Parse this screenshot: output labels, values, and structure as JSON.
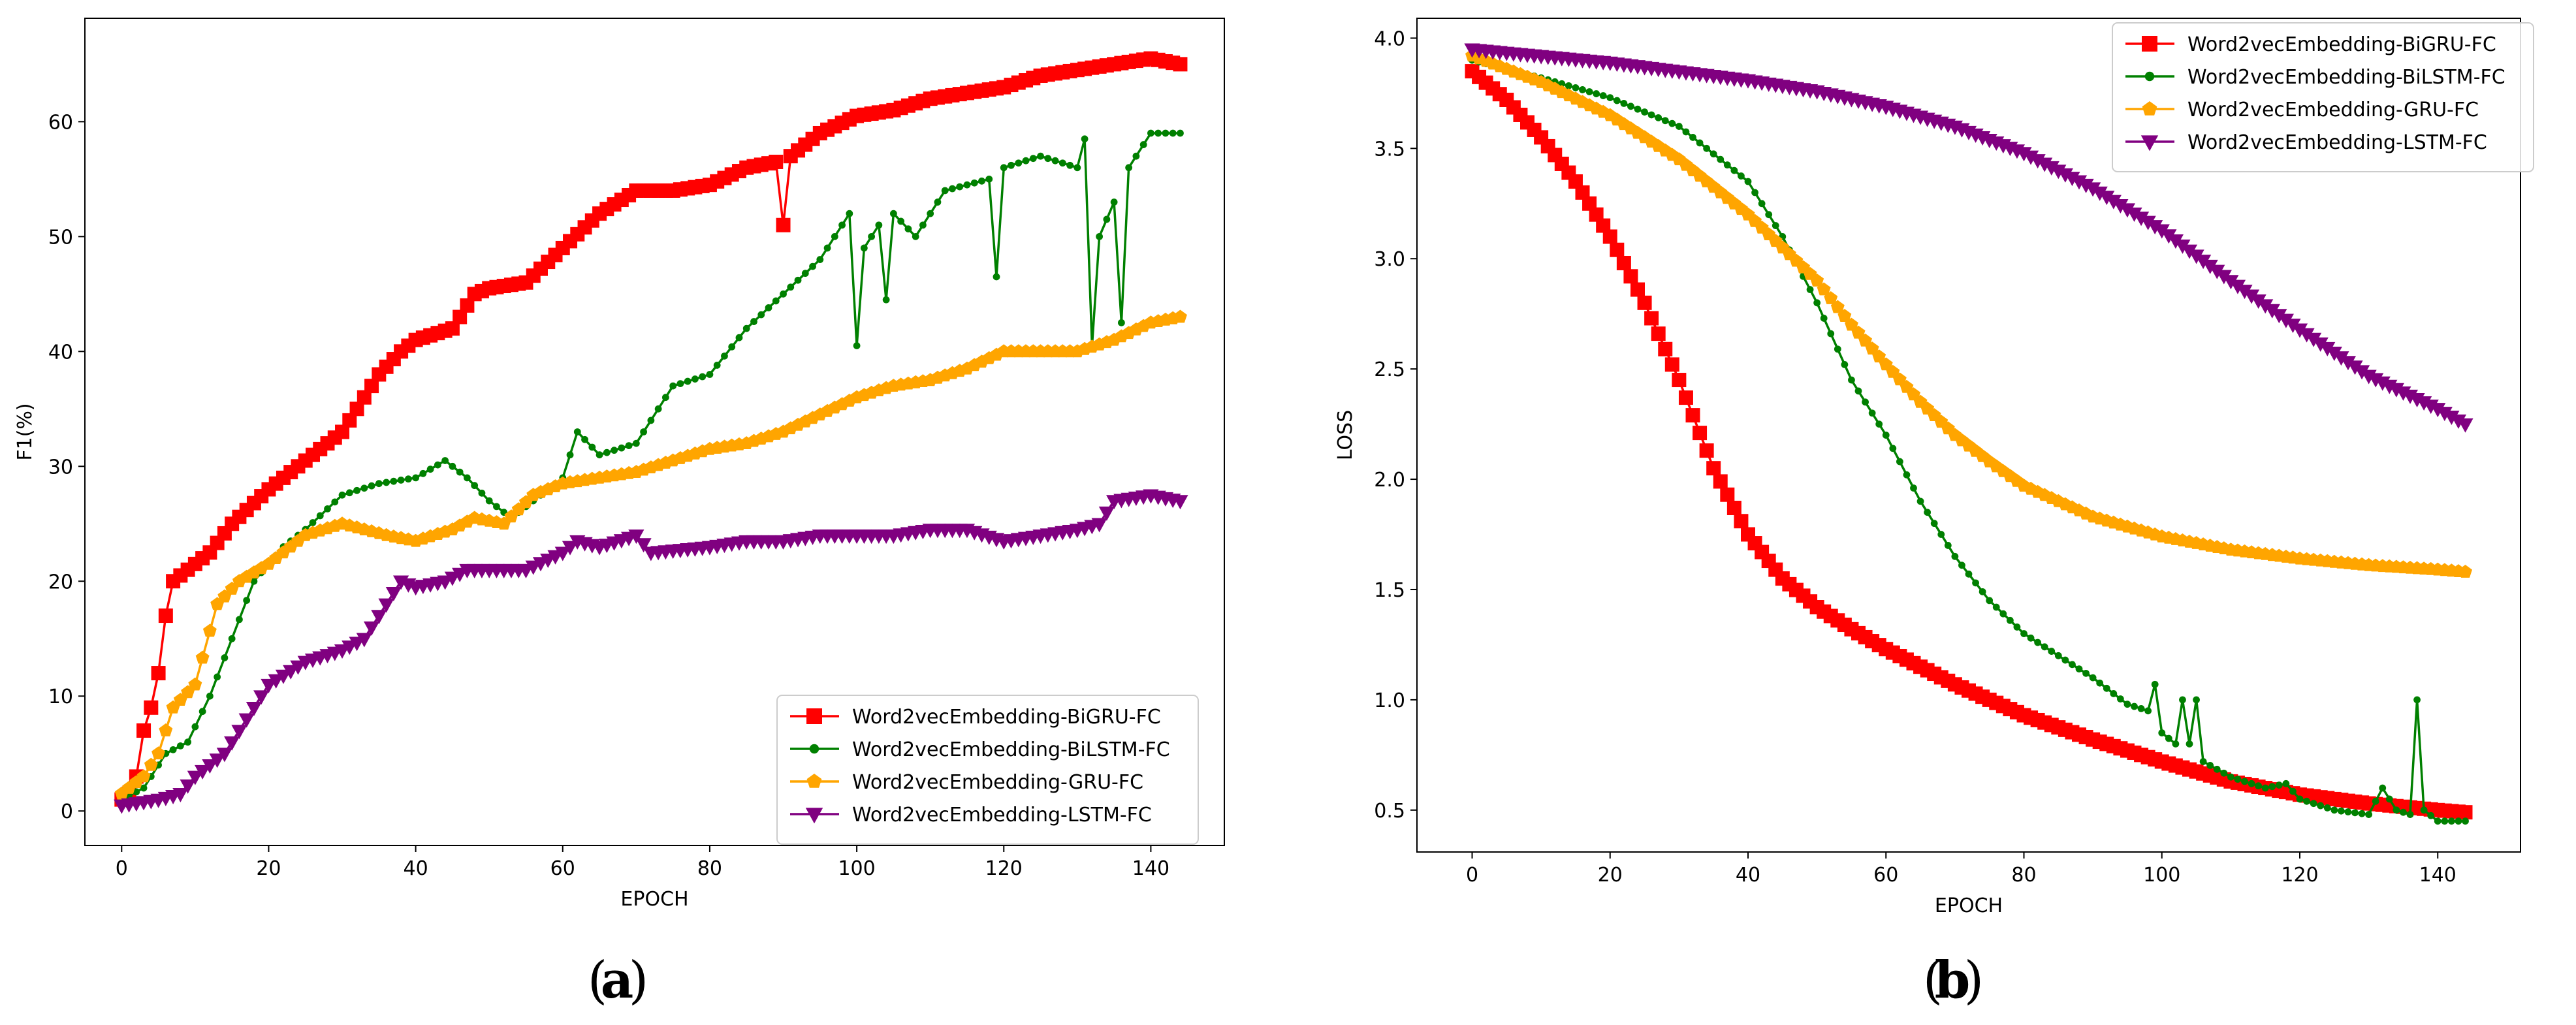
{
  "colors": {
    "BiGRU": "#ff0000",
    "BiLSTM": "#008000",
    "GRU": "#ffa500",
    "LSTM": "#800080"
  },
  "chart_data": [
    {
      "id": "a",
      "type": "line",
      "caption_open": "(",
      "caption_letter": "a",
      "caption_close": ")",
      "xlabel": "EPOCH",
      "ylabel": "F1(%)",
      "xlim": [
        -5,
        150
      ],
      "ylim": [
        -3,
        69
      ],
      "xticks": [
        0,
        20,
        40,
        60,
        80,
        100,
        120,
        140
      ],
      "yticks": [
        0,
        10,
        20,
        30,
        40,
        50,
        60
      ],
      "legend_position": "lower-right",
      "x_range": [
        0,
        144
      ],
      "series": [
        {
          "name": "Word2vecEmbedding-BiGRU-FC",
          "color_key": "BiGRU",
          "marker": "square",
          "anchors": [
            [
              0,
              1
            ],
            [
              1,
              1.5
            ],
            [
              2,
              3
            ],
            [
              3,
              7
            ],
            [
              4,
              9
            ],
            [
              5,
              12
            ],
            [
              6,
              17
            ],
            [
              7,
              20
            ],
            [
              9,
              21
            ],
            [
              12,
              22.5
            ],
            [
              15,
              25
            ],
            [
              20,
              28
            ],
            [
              25,
              30.5
            ],
            [
              30,
              33
            ],
            [
              35,
              38
            ],
            [
              38,
              40
            ],
            [
              40,
              41
            ],
            [
              45,
              42
            ],
            [
              48,
              45
            ],
            [
              50,
              45.5
            ],
            [
              55,
              46
            ],
            [
              60,
              49
            ],
            [
              65,
              52
            ],
            [
              70,
              54
            ],
            [
              75,
              54
            ],
            [
              80,
              54.5
            ],
            [
              85,
              56
            ],
            [
              89,
              56.5
            ],
            [
              90,
              51
            ],
            [
              91,
              57
            ],
            [
              95,
              59
            ],
            [
              100,
              60.5
            ],
            [
              105,
              61
            ],
            [
              110,
              62
            ],
            [
              115,
              62.5
            ],
            [
              120,
              63
            ],
            [
              125,
              64
            ],
            [
              130,
              64.5
            ],
            [
              135,
              65
            ],
            [
              140,
              65.5
            ],
            [
              144,
              65
            ]
          ]
        },
        {
          "name": "Word2vecEmbedding-BiLSTM-FC",
          "color_key": "BiLSTM",
          "marker": "point",
          "anchors": [
            [
              0,
              1
            ],
            [
              3,
              2
            ],
            [
              6,
              5
            ],
            [
              9,
              6
            ],
            [
              12,
              10
            ],
            [
              15,
              15
            ],
            [
              18,
              20
            ],
            [
              22,
              23
            ],
            [
              25,
              24.5
            ],
            [
              30,
              27.5
            ],
            [
              35,
              28.5
            ],
            [
              40,
              29
            ],
            [
              44,
              30.5
            ],
            [
              47,
              29
            ],
            [
              50,
              27
            ],
            [
              53,
              25.5
            ],
            [
              56,
              27
            ],
            [
              60,
              29
            ],
            [
              62,
              33
            ],
            [
              65,
              31
            ],
            [
              70,
              32
            ],
            [
              75,
              37
            ],
            [
              80,
              38
            ],
            [
              85,
              42
            ],
            [
              90,
              45
            ],
            [
              95,
              48
            ],
            [
              99,
              52
            ],
            [
              100,
              40.5
            ],
            [
              101,
              49
            ],
            [
              103,
              51
            ],
            [
              104,
              44.5
            ],
            [
              105,
              52
            ],
            [
              108,
              50
            ],
            [
              112,
              54
            ],
            [
              118,
              55
            ],
            [
              119,
              46.5
            ],
            [
              120,
              56
            ],
            [
              125,
              57
            ],
            [
              130,
              56
            ],
            [
              131,
              58.5
            ],
            [
              132,
              40.5
            ],
            [
              133,
              50
            ],
            [
              135,
              53
            ],
            [
              136,
              42.5
            ],
            [
              137,
              56
            ],
            [
              140,
              59
            ],
            [
              144,
              59
            ]
          ]
        },
        {
          "name": "Word2vecEmbedding-GRU-FC",
          "color_key": "GRU",
          "marker": "pentagon",
          "anchors": [
            [
              0,
              1.5
            ],
            [
              3,
              3
            ],
            [
              5,
              5
            ],
            [
              7,
              9
            ],
            [
              10,
              11
            ],
            [
              13,
              18
            ],
            [
              16,
              20
            ],
            [
              20,
              21.5
            ],
            [
              25,
              24
            ],
            [
              30,
              25
            ],
            [
              33,
              24.5
            ],
            [
              36,
              24
            ],
            [
              40,
              23.5
            ],
            [
              45,
              24.5
            ],
            [
              48,
              25.5
            ],
            [
              52,
              25
            ],
            [
              56,
              27.5
            ],
            [
              60,
              28.5
            ],
            [
              65,
              29
            ],
            [
              70,
              29.5
            ],
            [
              75,
              30.5
            ],
            [
              80,
              31.5
            ],
            [
              85,
              32
            ],
            [
              90,
              33
            ],
            [
              95,
              34.5
            ],
            [
              100,
              36
            ],
            [
              105,
              37
            ],
            [
              110,
              37.5
            ],
            [
              115,
              38.5
            ],
            [
              120,
              40
            ],
            [
              125,
              40
            ],
            [
              130,
              40
            ],
            [
              135,
              41
            ],
            [
              140,
              42.5
            ],
            [
              144,
              43
            ]
          ]
        },
        {
          "name": "Word2vecEmbedding-LSTM-FC",
          "color_key": "LSTM",
          "marker": "tri-down",
          "anchors": [
            [
              0,
              0.5
            ],
            [
              5,
              1
            ],
            [
              8,
              1.5
            ],
            [
              10,
              3
            ],
            [
              14,
              5
            ],
            [
              17,
              8
            ],
            [
              20,
              11
            ],
            [
              25,
              13
            ],
            [
              30,
              14
            ],
            [
              33,
              15
            ],
            [
              36,
              18
            ],
            [
              38,
              20
            ],
            [
              40,
              19.5
            ],
            [
              44,
              20
            ],
            [
              47,
              21
            ],
            [
              50,
              21
            ],
            [
              55,
              21
            ],
            [
              60,
              22.5
            ],
            [
              62,
              23.5
            ],
            [
              65,
              23
            ],
            [
              70,
              24
            ],
            [
              72,
              22.5
            ],
            [
              80,
              23
            ],
            [
              85,
              23.5
            ],
            [
              90,
              23.5
            ],
            [
              95,
              24
            ],
            [
              100,
              24
            ],
            [
              105,
              24
            ],
            [
              110,
              24.5
            ],
            [
              115,
              24.5
            ],
            [
              120,
              23.5
            ],
            [
              125,
              24
            ],
            [
              130,
              24.5
            ],
            [
              133,
              25
            ],
            [
              135,
              27
            ],
            [
              140,
              27.5
            ],
            [
              144,
              27
            ]
          ]
        }
      ]
    },
    {
      "id": "b",
      "type": "line",
      "caption_open": "(",
      "caption_letter": "b",
      "caption_close": ")",
      "xlabel": "EPOCH",
      "ylabel": "LOSS",
      "xlim": [
        -8,
        152
      ],
      "ylim": [
        0.31,
        4.09
      ],
      "xticks": [
        0,
        20,
        40,
        60,
        80,
        100,
        120,
        140
      ],
      "yticks": [
        0.5,
        1.0,
        1.5,
        2.0,
        2.5,
        3.0,
        3.5,
        4.0
      ],
      "ytick_labels": [
        "0.5",
        "1.0",
        "1.5",
        "2.0",
        "2.5",
        "3.0",
        "3.5",
        "4.0"
      ],
      "legend_position": "upper-right",
      "x_range": [
        0,
        144
      ],
      "series": [
        {
          "name": "Word2vecEmbedding-BiGRU-FC",
          "color_key": "BiGRU",
          "marker": "square",
          "anchors": [
            [
              0,
              3.85
            ],
            [
              5,
              3.72
            ],
            [
              10,
              3.55
            ],
            [
              15,
              3.35
            ],
            [
              20,
              3.1
            ],
            [
              25,
              2.8
            ],
            [
              30,
              2.45
            ],
            [
              35,
              2.05
            ],
            [
              40,
              1.75
            ],
            [
              45,
              1.55
            ],
            [
              50,
              1.42
            ],
            [
              55,
              1.32
            ],
            [
              60,
              1.23
            ],
            [
              65,
              1.15
            ],
            [
              70,
              1.07
            ],
            [
              80,
              0.93
            ],
            [
              90,
              0.82
            ],
            [
              100,
              0.72
            ],
            [
              110,
              0.63
            ],
            [
              120,
              0.57
            ],
            [
              130,
              0.53
            ],
            [
              140,
              0.5
            ],
            [
              144,
              0.49
            ]
          ]
        },
        {
          "name": "Word2vecEmbedding-BiLSTM-FC",
          "color_key": "BiLSTM",
          "marker": "point",
          "anchors": [
            [
              0,
              3.9
            ],
            [
              10,
              3.82
            ],
            [
              20,
              3.73
            ],
            [
              30,
              3.6
            ],
            [
              40,
              3.35
            ],
            [
              45,
              3.1
            ],
            [
              50,
              2.8
            ],
            [
              55,
              2.45
            ],
            [
              60,
              2.2
            ],
            [
              65,
              1.9
            ],
            [
              70,
              1.65
            ],
            [
              75,
              1.45
            ],
            [
              80,
              1.3
            ],
            [
              85,
              1.2
            ],
            [
              90,
              1.1
            ],
            [
              95,
              0.98
            ],
            [
              98,
              0.95
            ],
            [
              99,
              1.07
            ],
            [
              100,
              0.85
            ],
            [
              102,
              0.8
            ],
            [
              103,
              1.0
            ],
            [
              104,
              0.8
            ],
            [
              105,
              1.0
            ],
            [
              106,
              0.72
            ],
            [
              110,
              0.65
            ],
            [
              115,
              0.6
            ],
            [
              118,
              0.62
            ],
            [
              120,
              0.55
            ],
            [
              125,
              0.5
            ],
            [
              130,
              0.48
            ],
            [
              132,
              0.6
            ],
            [
              134,
              0.5
            ],
            [
              136,
              0.48
            ],
            [
              137,
              1.0
            ],
            [
              138,
              0.5
            ],
            [
              140,
              0.45
            ],
            [
              144,
              0.45
            ]
          ]
        },
        {
          "name": "Word2vecEmbedding-GRU-FC",
          "color_key": "GRU",
          "marker": "pentagon",
          "anchors": [
            [
              0,
              3.92
            ],
            [
              10,
              3.8
            ],
            [
              20,
              3.65
            ],
            [
              30,
              3.45
            ],
            [
              40,
              3.2
            ],
            [
              50,
              2.9
            ],
            [
              55,
              2.7
            ],
            [
              60,
              2.52
            ],
            [
              65,
              2.35
            ],
            [
              70,
              2.2
            ],
            [
              75,
              2.08
            ],
            [
              80,
              1.97
            ],
            [
              90,
              1.83
            ],
            [
              100,
              1.74
            ],
            [
              110,
              1.68
            ],
            [
              120,
              1.64
            ],
            [
              130,
              1.61
            ],
            [
              140,
              1.59
            ],
            [
              144,
              1.58
            ]
          ]
        },
        {
          "name": "Word2vecEmbedding-LSTM-FC",
          "color_key": "LSTM",
          "marker": "tri-down",
          "anchors": [
            [
              0,
              3.95
            ],
            [
              10,
              3.92
            ],
            [
              20,
              3.89
            ],
            [
              30,
              3.85
            ],
            [
              40,
              3.81
            ],
            [
              50,
              3.76
            ],
            [
              60,
              3.69
            ],
            [
              70,
              3.6
            ],
            [
              80,
              3.48
            ],
            [
              90,
              3.32
            ],
            [
              100,
              3.13
            ],
            [
              110,
              2.9
            ],
            [
              120,
              2.68
            ],
            [
              130,
              2.47
            ],
            [
              140,
              2.32
            ],
            [
              144,
              2.25
            ]
          ]
        }
      ]
    }
  ]
}
